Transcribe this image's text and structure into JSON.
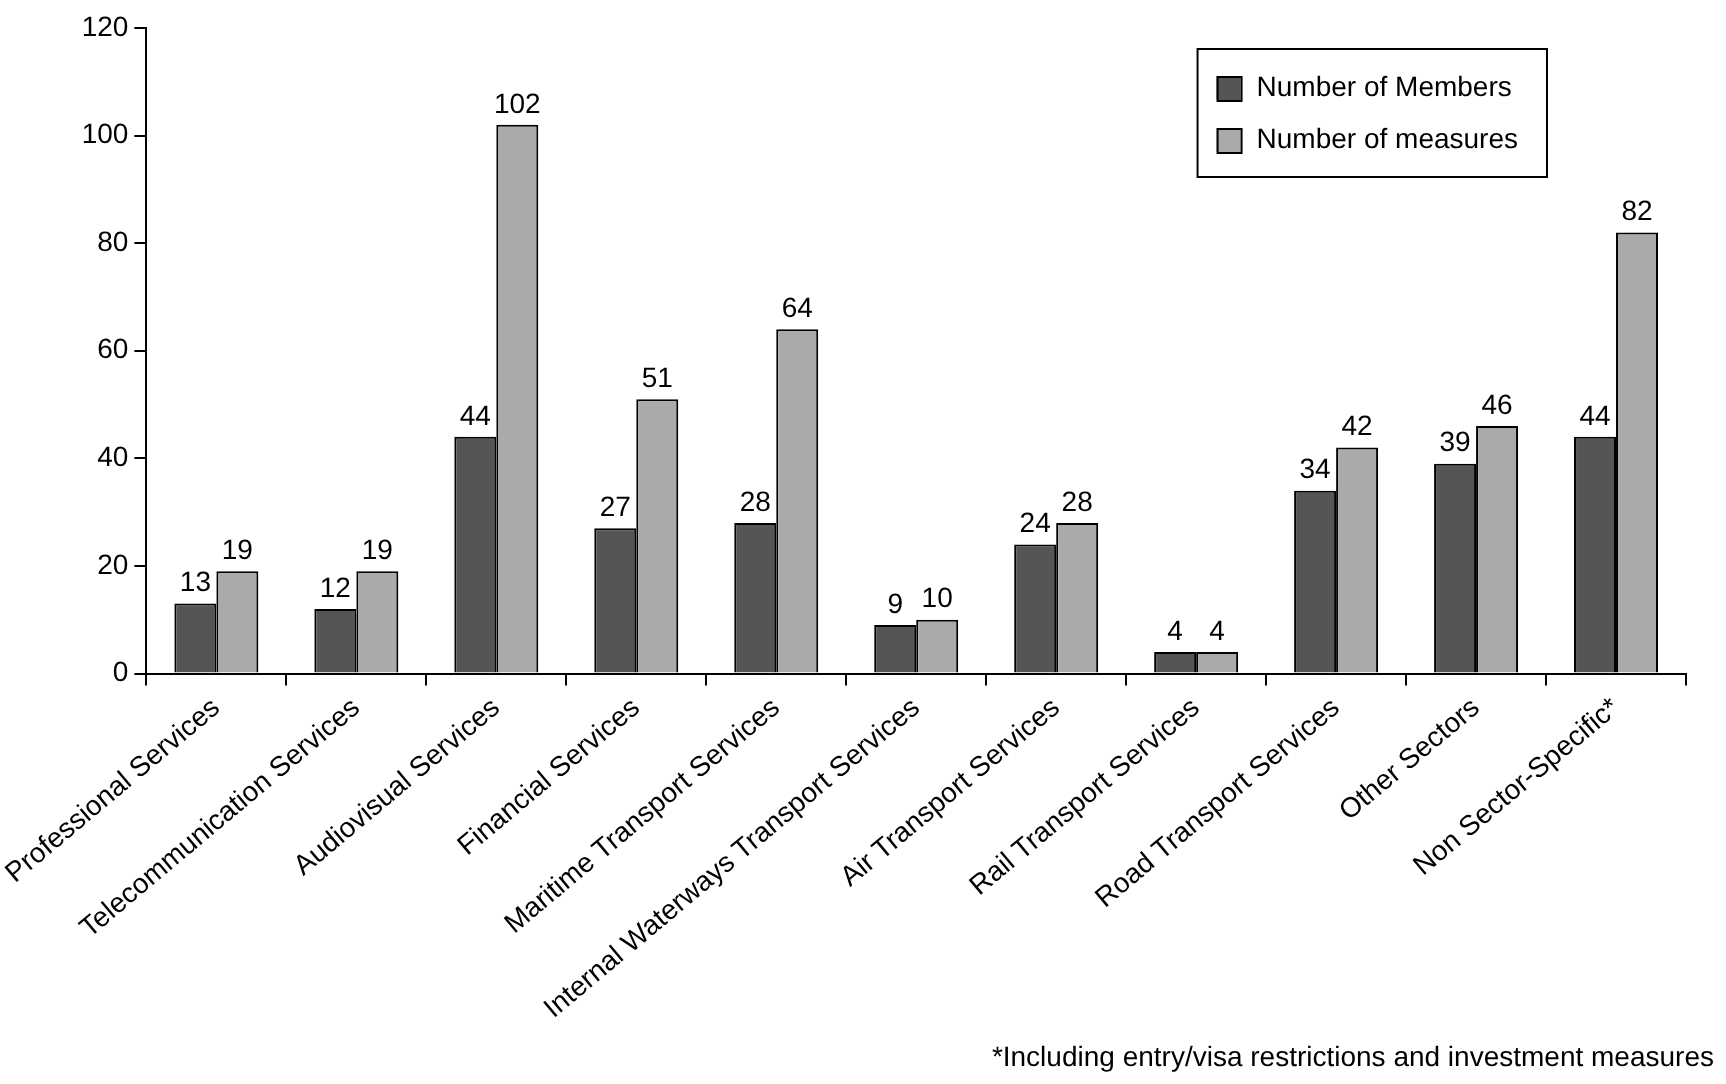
{
  "chart_data": {
    "type": "bar",
    "categories": [
      "Professional Services",
      "Telecommunication Services",
      "Audiovisual Services",
      "Financial Services",
      "Maritime Transport Services",
      "Internal Waterways Transport Services",
      "Air Transport Services",
      "Rail Transport Services",
      "Road Transport Services",
      "Other Sectors",
      "Non Sector-Specific*"
    ],
    "series": [
      {
        "name": "Number of Members",
        "color": "#555555",
        "values": [
          13,
          12,
          44,
          27,
          28,
          9,
          24,
          4,
          34,
          39,
          44
        ]
      },
      {
        "name": "Number of measures",
        "color": "#aaaaaa",
        "values": [
          19,
          19,
          102,
          51,
          64,
          10,
          28,
          4,
          42,
          46,
          82
        ]
      }
    ],
    "ylim": [
      0,
      120
    ],
    "yticks": [
      0,
      20,
      40,
      60,
      80,
      100,
      120
    ],
    "data_labels": true,
    "legend": "top right",
    "grid": false,
    "annotations": [
      "*Including entry/visa restrictions and investment measures"
    ]
  }
}
